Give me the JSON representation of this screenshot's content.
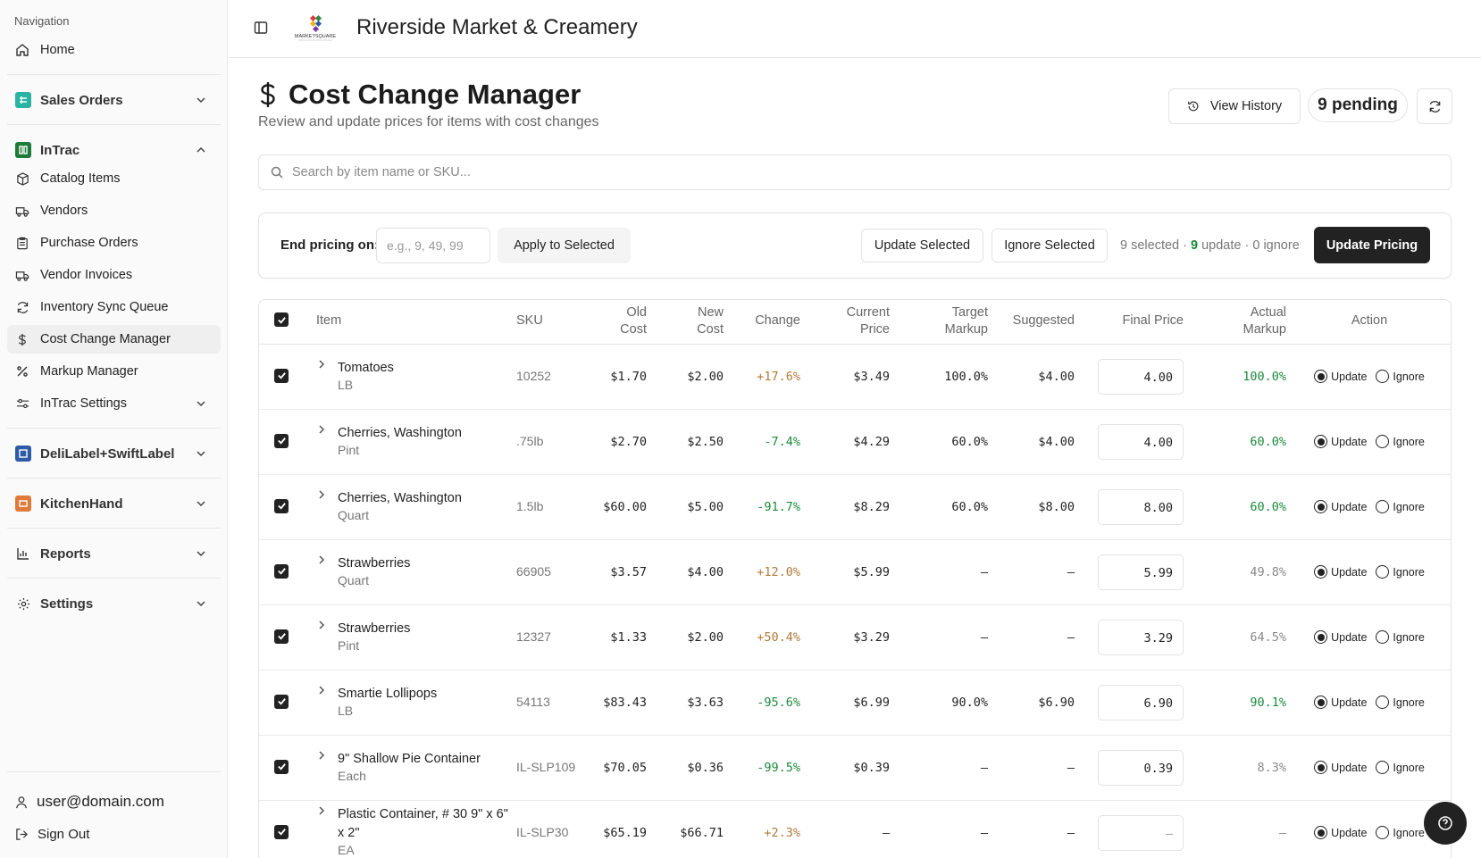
{
  "sidebar": {
    "heading": "Navigation",
    "home": "Home",
    "sales_orders": "Sales Orders",
    "intrac": "InTrac",
    "intrac_items": [
      {
        "label": "Catalog Items",
        "icon": "box-icon"
      },
      {
        "label": "Vendors",
        "icon": "truck-icon"
      },
      {
        "label": "Purchase Orders",
        "icon": "clipboard-icon"
      },
      {
        "label": "Vendor Invoices",
        "icon": "invoice-icon"
      },
      {
        "label": "Inventory Sync Queue",
        "icon": "sync-icon"
      },
      {
        "label": "Cost Change Manager",
        "icon": "dollar-icon"
      },
      {
        "label": "Markup Manager",
        "icon": "percent-icon"
      },
      {
        "label": "InTrac Settings",
        "icon": "sliders-icon"
      }
    ],
    "delilabel": "DeliLabel+SwiftLabel",
    "kitchenhand": "KitchenHand",
    "reports": "Reports",
    "settings": "Settings",
    "user_email": "user@domain.com",
    "sign_out": "Sign Out"
  },
  "header": {
    "store_name": "Riverside Market & Creamery",
    "logo_text": "MARKETSQUARE"
  },
  "page": {
    "title": "Cost Change Manager",
    "subtitle": "Review and update prices for items with cost changes",
    "view_history": "View History",
    "pending": "9 pending"
  },
  "search": {
    "placeholder": "Search by item name or SKU..."
  },
  "toolbar": {
    "end_pricing_label": "End pricing on:",
    "end_pricing_placeholder": "e.g., 9, 49, 99",
    "apply_to_selected": "Apply to Selected",
    "update_selected": "Update Selected",
    "ignore_selected": "Ignore Selected",
    "selected_count": "9 selected",
    "separator": " · ",
    "update_count": "9",
    "update_word": " update",
    "ignore_count": "0 ignore",
    "update_pricing": "Update Pricing"
  },
  "table": {
    "headers": {
      "item": "Item",
      "sku": "SKU",
      "old_cost_1": "Old",
      "old_cost_2": "Cost",
      "new_cost_1": "New",
      "new_cost_2": "Cost",
      "change": "Change",
      "current_price_1": "Current",
      "current_price_2": "Price",
      "target_markup_1": "Target",
      "target_markup_2": "Markup",
      "suggested": "Suggested",
      "final_price": "Final Price",
      "actual_markup_1": "Actual",
      "actual_markup_2": "Markup",
      "action": "Action"
    },
    "update_label": "Update",
    "ignore_label": "Ignore",
    "rows": [
      {
        "name": "Tomatoes",
        "unit": "LB",
        "sku": "10252",
        "old_cost": "$1.70",
        "new_cost": "$2.00",
        "change": "+17.6%",
        "dir": "up",
        "current_price": "$3.49",
        "target_markup": "100.0%",
        "suggested": "$4.00",
        "final": "4.00",
        "actual_markup": "100.0%",
        "markup_ok": true
      },
      {
        "name": "Cherries, Washington",
        "unit": "Pint",
        "sku": ".75lb",
        "old_cost": "$2.70",
        "new_cost": "$2.50",
        "change": "-7.4%",
        "dir": "down",
        "current_price": "$4.29",
        "target_markup": "60.0%",
        "suggested": "$4.00",
        "final": "4.00",
        "actual_markup": "60.0%",
        "markup_ok": true
      },
      {
        "name": "Cherries, Washington",
        "unit": "Quart",
        "sku": "1.5lb",
        "old_cost": "$60.00",
        "new_cost": "$5.00",
        "change": "-91.7%",
        "dir": "down",
        "current_price": "$8.29",
        "target_markup": "60.0%",
        "suggested": "$8.00",
        "final": "8.00",
        "actual_markup": "60.0%",
        "markup_ok": true
      },
      {
        "name": "Strawberries",
        "unit": "Quart",
        "sku": "66905",
        "old_cost": "$3.57",
        "new_cost": "$4.00",
        "change": "+12.0%",
        "dir": "up",
        "current_price": "$5.99",
        "target_markup": "—",
        "suggested": "—",
        "final": "5.99",
        "actual_markup": "49.8%",
        "markup_ok": false
      },
      {
        "name": "Strawberries",
        "unit": "Pint",
        "sku": "12327",
        "old_cost": "$1.33",
        "new_cost": "$2.00",
        "change": "+50.4%",
        "dir": "up",
        "current_price": "$3.29",
        "target_markup": "—",
        "suggested": "—",
        "final": "3.29",
        "actual_markup": "64.5%",
        "markup_ok": false
      },
      {
        "name": "Smartie Lollipops",
        "unit": "LB",
        "sku": "54113",
        "old_cost": "$83.43",
        "new_cost": "$3.63",
        "change": "-95.6%",
        "dir": "down",
        "current_price": "$6.99",
        "target_markup": "90.0%",
        "suggested": "$6.90",
        "final": "6.90",
        "actual_markup": "90.1%",
        "markup_ok": true
      },
      {
        "name": "9\" Shallow Pie Container",
        "unit": "Each",
        "sku": "IL-SLP109",
        "old_cost": "$70.05",
        "new_cost": "$0.36",
        "change": "-99.5%",
        "dir": "down",
        "current_price": "$0.39",
        "target_markup": "—",
        "suggested": "—",
        "final": "0.39",
        "actual_markup": "8.3%",
        "markup_ok": false
      },
      {
        "name": "Plastic Container, # 30 9\" x 6\" x 2\"",
        "unit": "EA",
        "sku": "IL-SLP30",
        "old_cost": "$65.19",
        "new_cost": "$66.71",
        "change": "+2.3%",
        "dir": "up",
        "current_price": "—",
        "target_markup": "—",
        "suggested": "—",
        "final": "—",
        "actual_markup": "—",
        "markup_ok": false
      }
    ]
  },
  "colors": {
    "accent_dark": "#222222",
    "positive_green": "#1a8a3a",
    "cost_increase": "#b07a3a"
  }
}
